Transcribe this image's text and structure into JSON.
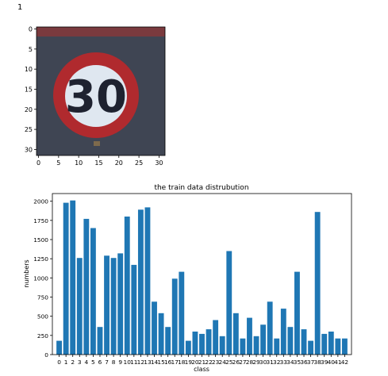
{
  "output_index": "1",
  "colors": {
    "bar": "#1f77b4",
    "axis": "#000000",
    "sign_ring": "#b02a2e",
    "sign_face": "#dfe7f0",
    "sign_digits": "#1e2230",
    "image_background": "#3d4250",
    "image_top_band": "#7a3a3e"
  },
  "chart_data": [
    {
      "type": "image",
      "description": "32x32 traffic sign image shown with imshow (speed limit 30)",
      "x_ticks": [
        0,
        5,
        10,
        15,
        20,
        25,
        30
      ],
      "y_ticks": [
        0,
        5,
        10,
        15,
        20,
        25,
        30
      ],
      "xlim": [
        -0.5,
        31.5
      ],
      "ylim": [
        31.5,
        -0.5
      ],
      "sign_text": "30"
    },
    {
      "type": "bar",
      "title": "the train data distrubution",
      "xlabel": "class",
      "ylabel": "numbers",
      "categories": [
        "0",
        "1",
        "2",
        "3",
        "4",
        "5",
        "6",
        "7",
        "8",
        "9",
        "10",
        "11",
        "12",
        "13",
        "14",
        "15",
        "16",
        "17",
        "18",
        "19",
        "20",
        "21",
        "22",
        "23",
        "24",
        "25",
        "26",
        "27",
        "28",
        "29",
        "30",
        "31",
        "32",
        "33",
        "34",
        "35",
        "36",
        "37",
        "38",
        "39",
        "40",
        "41",
        "42"
      ],
      "values": [
        180,
        1980,
        2010,
        1260,
        1770,
        1650,
        360,
        1290,
        1260,
        1320,
        1800,
        1170,
        1890,
        1920,
        690,
        540,
        360,
        990,
        1080,
        180,
        300,
        270,
        330,
        450,
        240,
        1350,
        540,
        210,
        480,
        240,
        390,
        690,
        210,
        599,
        360,
        1080,
        330,
        180,
        1860,
        270,
        300,
        210,
        210
      ],
      "ylim": [
        0,
        2100
      ],
      "y_ticks": [
        0,
        250,
        500,
        750,
        1000,
        1250,
        1500,
        1750,
        2000
      ]
    }
  ]
}
